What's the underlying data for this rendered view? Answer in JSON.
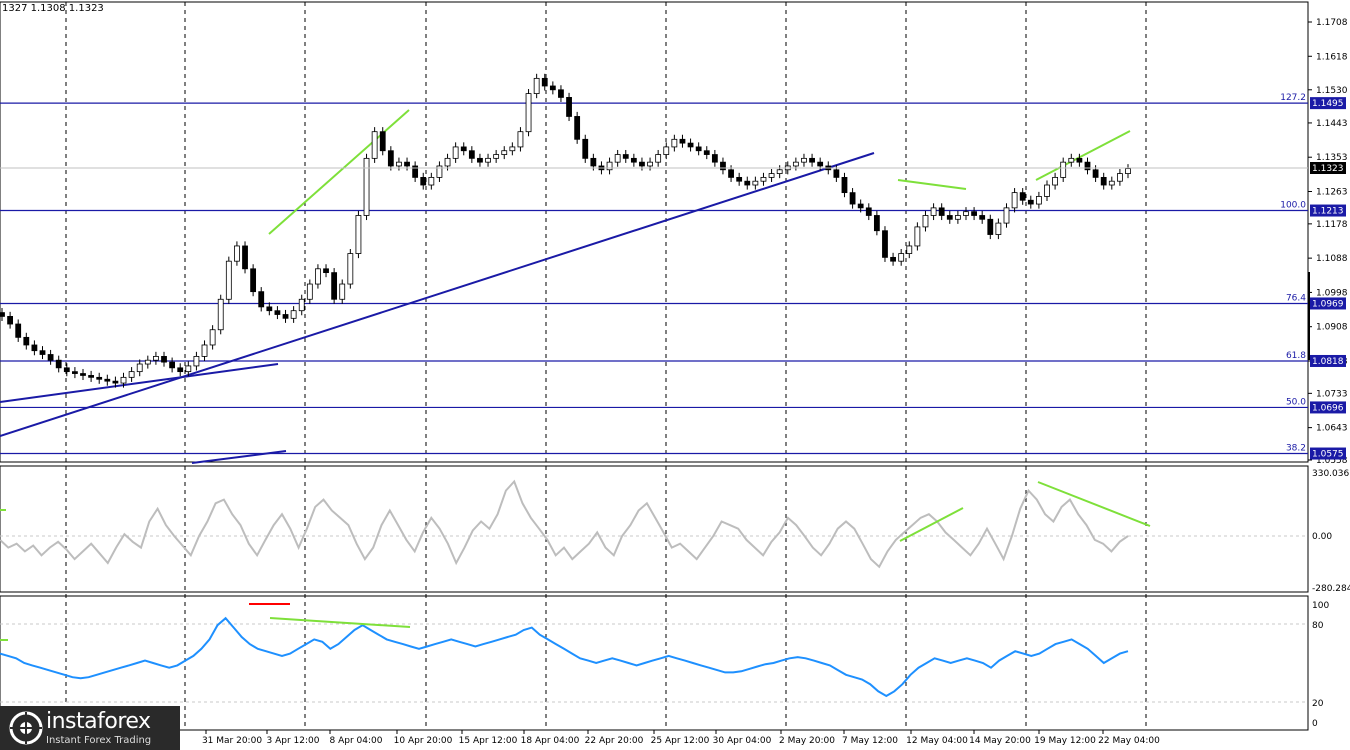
{
  "chart_data": {
    "type": "candlestick",
    "ohlc_header": "1327 1.1308 1.1323",
    "last_price": 1.1323,
    "price_labels": [
      "1.1708",
      "1.1618",
      "1.1530",
      "1.1443",
      "1.1353",
      "1.1263",
      "1.1178",
      "1.1088",
      "1.0998",
      "1.0908",
      "1.0818",
      "1.0733",
      "1.0643",
      "1.0558"
    ],
    "x_labels": [
      "31 Mar 20:00",
      "3 Apr 12:00",
      "8 Apr 04:00",
      "10 Apr 20:00",
      "15 Apr 12:00",
      "18 Apr 04:00",
      "22 Apr 20:00",
      "25 Apr 12:00",
      "30 Apr 04:00",
      "2 May 20:00",
      "7 May 12:00",
      "12 May 04:00",
      "14 May 20:00",
      "19 May 12:00",
      "22 May 04:00"
    ],
    "fib_levels": [
      {
        "ratio": "127.2",
        "price": "1.1495"
      },
      {
        "ratio": "100.0",
        "price": "1.1213"
      },
      {
        "ratio": "76.4",
        "price": "1.0969"
      },
      {
        "ratio": "61.8",
        "price": "1.0818"
      },
      {
        "ratio": "50.0",
        "price": "1.0696"
      },
      {
        "ratio": "38.2",
        "price": "1.0575"
      }
    ],
    "cci": {
      "max_label": "330.0361",
      "zero_label": "0.00",
      "min_label": "-280.2849"
    },
    "rsi": {
      "labels": [
        "100",
        "80",
        "20",
        "0"
      ],
      "levels": [
        80,
        20
      ]
    },
    "price_series": [
      1.0935,
      1.0915,
      1.088,
      1.086,
      1.0845,
      1.0835,
      1.082,
      1.08,
      1.079,
      1.0785,
      1.078,
      1.0775,
      1.077,
      1.0765,
      1.076,
      1.0775,
      1.079,
      1.081,
      1.082,
      1.083,
      1.0815,
      1.08,
      1.079,
      1.0805,
      1.083,
      1.086,
      1.09,
      1.098,
      1.108,
      1.112,
      1.106,
      1.1,
      1.096,
      1.095,
      1.094,
      1.093,
      1.095,
      1.098,
      1.102,
      1.106,
      1.105,
      1.098,
      1.102,
      1.11,
      1.12,
      1.135,
      1.142,
      1.137,
      1.133,
      1.134,
      1.133,
      1.13,
      1.128,
      1.13,
      1.133,
      1.135,
      1.138,
      1.137,
      1.135,
      1.134,
      1.135,
      1.136,
      1.137,
      1.138,
      1.142,
      1.152,
      1.156,
      1.154,
      1.153,
      1.151,
      1.146,
      1.14,
      1.135,
      1.133,
      1.132,
      1.134,
      1.136,
      1.135,
      1.134,
      1.133,
      1.134,
      1.136,
      1.138,
      1.14,
      1.139,
      1.138,
      1.137,
      1.136,
      1.134,
      1.132,
      1.13,
      1.129,
      1.128,
      1.129,
      1.13,
      1.131,
      1.132,
      1.133,
      1.134,
      1.135,
      1.134,
      1.133,
      1.132,
      1.13,
      1.126,
      1.123,
      1.122,
      1.12,
      1.116,
      1.109,
      1.108,
      1.11,
      1.112,
      1.117,
      1.12,
      1.122,
      1.12,
      1.119,
      1.12,
      1.121,
      1.12,
      1.119,
      1.115,
      1.118,
      1.122,
      1.126,
      1.124,
      1.123,
      1.125,
      1.128,
      1.13,
      1.134,
      1.135,
      1.134,
      1.132,
      1.13,
      1.128,
      1.129,
      1.131,
      1.1323
    ],
    "cci_series": [
      -20,
      -60,
      -40,
      -80,
      -50,
      -100,
      -60,
      -30,
      -70,
      -120,
      -80,
      -40,
      -90,
      -140,
      -60,
      10,
      -30,
      -60,
      80,
      150,
      60,
      0,
      -50,
      -100,
      0,
      80,
      180,
      200,
      120,
      60,
      -40,
      -100,
      -20,
      60,
      120,
      40,
      -60,
      40,
      160,
      200,
      140,
      100,
      60,
      -40,
      -120,
      -60,
      60,
      140,
      60,
      -20,
      -80,
      20,
      100,
      40,
      -40,
      -140,
      -60,
      30,
      80,
      40,
      120,
      250,
      300,
      180,
      100,
      40,
      -20,
      -100,
      -60,
      -120,
      -80,
      -40,
      20,
      -60,
      -100,
      0,
      60,
      140,
      180,
      100,
      20,
      -60,
      -40,
      -80,
      -120,
      -60,
      0,
      80,
      60,
      40,
      -20,
      -60,
      -100,
      -30,
      20,
      100,
      60,
      0,
      -60,
      -100,
      -40,
      40,
      80,
      40,
      -40,
      -120,
      -160,
      -80,
      -20,
      20,
      60,
      100,
      120,
      80,
      20,
      -20,
      -60,
      -100,
      -40,
      40,
      -40,
      -120,
      0,
      150,
      250,
      200,
      120,
      80,
      160,
      200,
      120,
      60,
      -20,
      -40,
      -80,
      -30,
      0
    ],
    "rsi_series": [
      58,
      56,
      54,
      50,
      48,
      46,
      44,
      42,
      40,
      38,
      37,
      38,
      40,
      42,
      44,
      46,
      48,
      50,
      52,
      50,
      48,
      46,
      48,
      52,
      56,
      62,
      70,
      82,
      88,
      80,
      72,
      66,
      62,
      60,
      58,
      56,
      58,
      62,
      66,
      70,
      68,
      62,
      66,
      72,
      78,
      82,
      78,
      74,
      70,
      68,
      66,
      64,
      62,
      64,
      66,
      68,
      70,
      68,
      66,
      64,
      66,
      68,
      70,
      72,
      74,
      78,
      80,
      74,
      70,
      66,
      62,
      58,
      54,
      52,
      50,
      52,
      54,
      52,
      50,
      48,
      50,
      52,
      54,
      56,
      54,
      52,
      50,
      48,
      46,
      44,
      42,
      42,
      43,
      45,
      47,
      49,
      50,
      52,
      54,
      55,
      54,
      52,
      50,
      48,
      44,
      40,
      38,
      36,
      32,
      26,
      22,
      26,
      32,
      40,
      46,
      50,
      54,
      52,
      50,
      52,
      54,
      52,
      50,
      46,
      52,
      56,
      60,
      58,
      56,
      58,
      62,
      66,
      68,
      70,
      66,
      62,
      56,
      50,
      54,
      58,
      60
    ]
  }
}
